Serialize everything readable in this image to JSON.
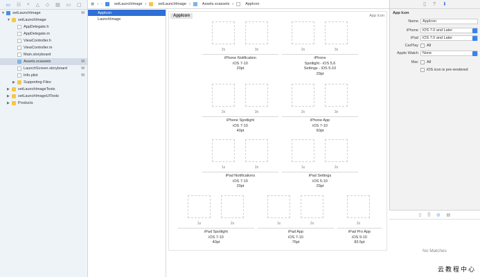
{
  "navigator": {
    "toolbar_icons": [
      "folder-icon",
      "hierarchy-icon",
      "search-icon",
      "warning-icon",
      "test-icon",
      "debug-icon",
      "breakpoint-icon",
      "report-icon"
    ],
    "items": [
      {
        "label": "setLaunchImage",
        "status": "M",
        "type": "project",
        "level": 0,
        "expanded": true
      },
      {
        "label": "setLaunchImage",
        "status": "",
        "type": "folder",
        "level": 1,
        "expanded": true
      },
      {
        "label": "AppDelegate.h",
        "status": "",
        "type": "file",
        "level": 2
      },
      {
        "label": "AppDelegate.m",
        "status": "",
        "type": "file",
        "level": 2
      },
      {
        "label": "ViewController.h",
        "status": "",
        "type": "file",
        "level": 2
      },
      {
        "label": "ViewController.m",
        "status": "",
        "type": "file",
        "level": 2
      },
      {
        "label": "Main.storyboard",
        "status": "",
        "type": "file",
        "level": 2
      },
      {
        "label": "Assets.xcassets",
        "status": "M",
        "type": "assets",
        "level": 2,
        "selected": true
      },
      {
        "label": "LaunchScreen.storyboard",
        "status": "M",
        "type": "file",
        "level": 2
      },
      {
        "label": "Info.plist",
        "status": "M",
        "type": "file",
        "level": 2
      },
      {
        "label": "Supporting Files",
        "status": "",
        "type": "folder",
        "level": 2,
        "collapsed": true
      },
      {
        "label": "setLaunchImageTests",
        "status": "",
        "type": "folder",
        "level": 1,
        "collapsed": true
      },
      {
        "label": "setLaunchImageUITests",
        "status": "",
        "type": "folder",
        "level": 1,
        "collapsed": true
      },
      {
        "label": "Products",
        "status": "",
        "type": "folder",
        "level": 1,
        "collapsed": true
      }
    ]
  },
  "breadcrumb": [
    "setLaunchImage",
    "setLaunchImage",
    "Assets.xcassets",
    "AppIcon"
  ],
  "asset_list": [
    {
      "label": "AppIcon",
      "selected": true
    },
    {
      "label": "LaunchImage"
    }
  ],
  "editor": {
    "title": "AppIcon",
    "kind": "App Icon",
    "groups": [
      {
        "scales": [
          "2x",
          "3x"
        ],
        "lines": [
          "iPhone Notification",
          "iOS 7-10",
          "20pt"
        ]
      },
      {
        "scales": [
          "2x",
          "3x"
        ],
        "lines": [
          "iPhone",
          "Spotlight - iOS 5,6",
          "Settings - iOS 5-10",
          "29pt"
        ]
      },
      {
        "scales": [
          "2x",
          "3x"
        ],
        "lines": [
          "iPhone Spotlight",
          "iOS 7-10",
          "40pt"
        ]
      },
      {
        "scales": [
          "2x",
          "3x"
        ],
        "lines": [
          "iPhone App",
          "iOS 7-10",
          "60pt"
        ]
      },
      {
        "scales": [
          "1x",
          "2x"
        ],
        "lines": [
          "iPad Notifications",
          "iOS 7-10",
          "20pt"
        ]
      },
      {
        "scales": [
          "1x",
          "2x"
        ],
        "lines": [
          "iPad Settings",
          "iOS 5-10",
          "29pt"
        ]
      },
      {
        "scales": [
          "1x",
          "2x"
        ],
        "lines": [
          "iPad Spotlight",
          "iOS 7-10",
          "40pt"
        ]
      },
      {
        "scales": [
          "1x",
          "2x"
        ],
        "lines": [
          "iPad App",
          "iOS 7-10",
          "76pt"
        ]
      },
      {
        "scales": [
          "2x"
        ],
        "lines": [
          "iPad Pro App",
          "iOS 9-10",
          "83.5pt"
        ]
      }
    ]
  },
  "inspector": {
    "section": "App Icon",
    "name_label": "Name",
    "name_value": "AppIcon",
    "iphone_label": "iPhone",
    "iphone_value": "iOS 7.0 and Later",
    "ipad_label": "iPad",
    "ipad_value": "iOS 7.0 and Later",
    "carplay_label": "CarPlay",
    "carplay_value": "All",
    "watch_label": "Apple Watch",
    "watch_value": "None",
    "mac_label": "Mac",
    "mac_value": "All",
    "prerendered_label": "iOS icon is pre-rendered",
    "no_matches": "No Matches"
  },
  "watermark": "云教程中心",
  "accent": "#2f6fd6"
}
